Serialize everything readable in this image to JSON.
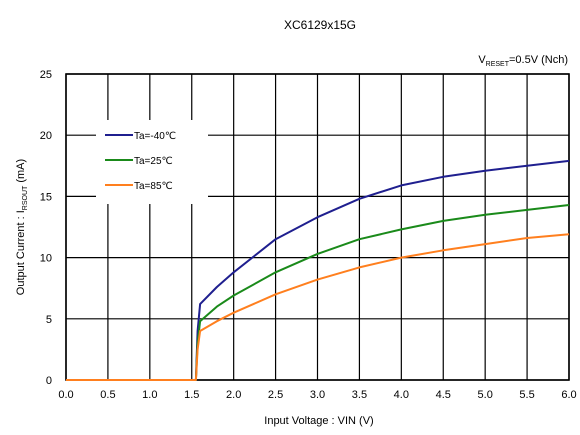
{
  "chart_data": {
    "type": "line",
    "title": "XC6129x15G",
    "condition": {
      "prefix": "V",
      "sub": "RESET",
      "suffix": "=0.5V  (Nch)"
    },
    "xlabel": "Input Voltage : VIN (V)",
    "ylabel": {
      "main": "Output Current : I",
      "sub": "RSOUT",
      "unit": " (mA)"
    },
    "xlim": [
      0.0,
      6.0
    ],
    "ylim": [
      0,
      25
    ],
    "xticks": [
      "0.0",
      "0.5",
      "1.0",
      "1.5",
      "2.0",
      "2.5",
      "3.0",
      "3.5",
      "4.0",
      "4.5",
      "5.0",
      "5.5",
      "6.0"
    ],
    "yticks": [
      "0",
      "5",
      "10",
      "15",
      "20",
      "25"
    ],
    "grid": true,
    "legend_position": "top-left",
    "series": [
      {
        "name": "Ta=-40℃",
        "color": "#1f1f8f",
        "x": [
          0.0,
          1.5,
          1.55,
          1.57,
          1.6,
          1.8,
          2.0,
          2.5,
          3.0,
          3.5,
          4.0,
          4.5,
          5.0,
          5.5,
          6.0
        ],
        "y": [
          0,
          0,
          0,
          4.0,
          6.2,
          7.6,
          8.8,
          11.5,
          13.3,
          14.8,
          15.9,
          16.6,
          17.1,
          17.5,
          17.9
        ]
      },
      {
        "name": "Ta=25℃",
        "color": "#1a8a1a",
        "x": [
          0.0,
          1.5,
          1.55,
          1.57,
          1.6,
          1.8,
          2.0,
          2.5,
          3.0,
          3.5,
          4.0,
          4.5,
          5.0,
          5.5,
          6.0
        ],
        "y": [
          0,
          0,
          0,
          3.0,
          4.8,
          6.0,
          6.9,
          8.8,
          10.3,
          11.5,
          12.3,
          13.0,
          13.5,
          13.9,
          14.3
        ]
      },
      {
        "name": "Ta=85℃",
        "color": "#ff7f1e",
        "x": [
          0.0,
          1.5,
          1.55,
          1.57,
          1.6,
          1.8,
          2.0,
          2.5,
          3.0,
          3.5,
          4.0,
          4.5,
          5.0,
          5.5,
          6.0
        ],
        "y": [
          0,
          0,
          0,
          2.5,
          4.0,
          4.8,
          5.5,
          7.0,
          8.2,
          9.2,
          10.0,
          10.6,
          11.1,
          11.6,
          11.9
        ]
      }
    ]
  }
}
